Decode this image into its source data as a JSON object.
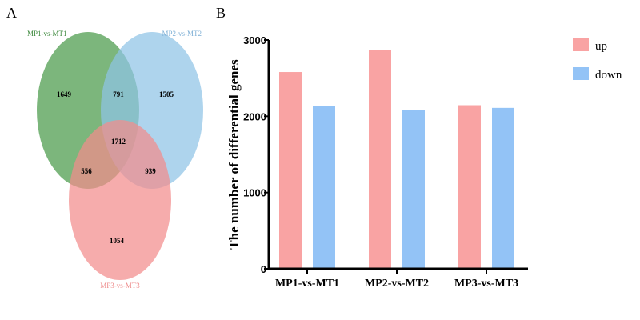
{
  "colors": {
    "set1": "#4a9a4a",
    "set2": "#8fc4e6",
    "set3": "#f28c8c",
    "up": "#f9a3a3",
    "down": "#93c3f6",
    "axis": "#000000"
  },
  "panel_a": {
    "letter": "A"
  },
  "panel_b": {
    "letter": "B"
  },
  "chart_data": [
    {
      "type": "venn",
      "sets": [
        "MP1-vs-MT1",
        "MP2-vs-MT2",
        "MP3-vs-MT3"
      ],
      "regions": [
        {
          "sets": [
            "MP1-vs-MT1"
          ],
          "value": 1649
        },
        {
          "sets": [
            "MP2-vs-MT2"
          ],
          "value": 1505
        },
        {
          "sets": [
            "MP3-vs-MT3"
          ],
          "value": 1054
        },
        {
          "sets": [
            "MP1-vs-MT1",
            "MP2-vs-MT2"
          ],
          "value": 791
        },
        {
          "sets": [
            "MP1-vs-MT1",
            "MP3-vs-MT3"
          ],
          "value": 556
        },
        {
          "sets": [
            "MP2-vs-MT2",
            "MP3-vs-MT3"
          ],
          "value": 939
        },
        {
          "sets": [
            "MP1-vs-MT1",
            "MP2-vs-MT2",
            "MP3-vs-MT3"
          ],
          "value": 1712
        }
      ]
    },
    {
      "type": "bar",
      "categories": [
        "MP1-vs-MT1",
        "MP2-vs-MT2",
        "MP3-vs-MT3"
      ],
      "series": [
        {
          "name": "up",
          "values": [
            2580,
            2870,
            2145
          ]
        },
        {
          "name": "down",
          "values": [
            2135,
            2080,
            2110
          ]
        }
      ],
      "ylabel": "The number of differential genes",
      "xlabel": "",
      "ylim": [
        0,
        3000
      ],
      "yticks": [
        0,
        1000,
        2000,
        3000
      ],
      "legend": "top-right",
      "grid": false
    }
  ]
}
